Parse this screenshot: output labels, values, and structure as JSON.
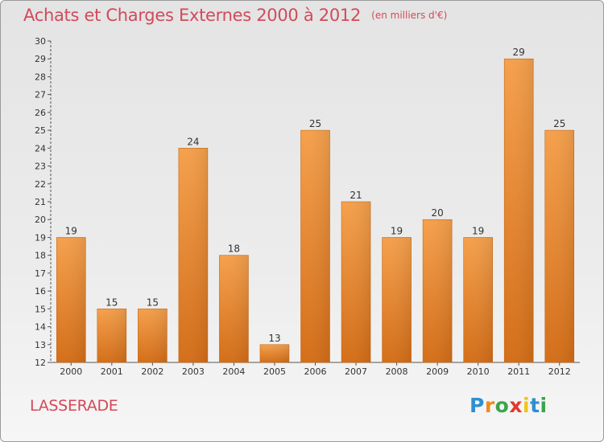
{
  "title": "Achats et Charges Externes 2000 à 2012",
  "subtitle": "(en milliers d'€)",
  "commune": "LASSERADE",
  "logo": {
    "letters": [
      "P",
      "r",
      "o",
      "x",
      "i",
      "t",
      "i"
    ],
    "colors": [
      "#2f8fd0",
      "#f08a1c",
      "#3aa54a",
      "#e23a2e",
      "#f0c419",
      "#2f8fd0",
      "#3aa54a"
    ]
  },
  "colors": {
    "bar": "#f0953a",
    "bar_dark": "#d06c14",
    "title": "#d24a5a"
  },
  "chart_data": {
    "type": "bar",
    "categories": [
      "2000",
      "2001",
      "2002",
      "2003",
      "2004",
      "2005",
      "2006",
      "2007",
      "2008",
      "2009",
      "2010",
      "2011",
      "2012"
    ],
    "values": [
      19,
      15,
      15,
      24,
      18,
      13,
      25,
      21,
      19,
      20,
      19,
      29,
      25
    ],
    "ylim": [
      12,
      30
    ],
    "yticks": [
      12,
      13,
      14,
      15,
      16,
      17,
      18,
      19,
      20,
      21,
      22,
      23,
      24,
      25,
      26,
      27,
      28,
      29,
      30
    ],
    "grid": false,
    "data_labels": true
  }
}
